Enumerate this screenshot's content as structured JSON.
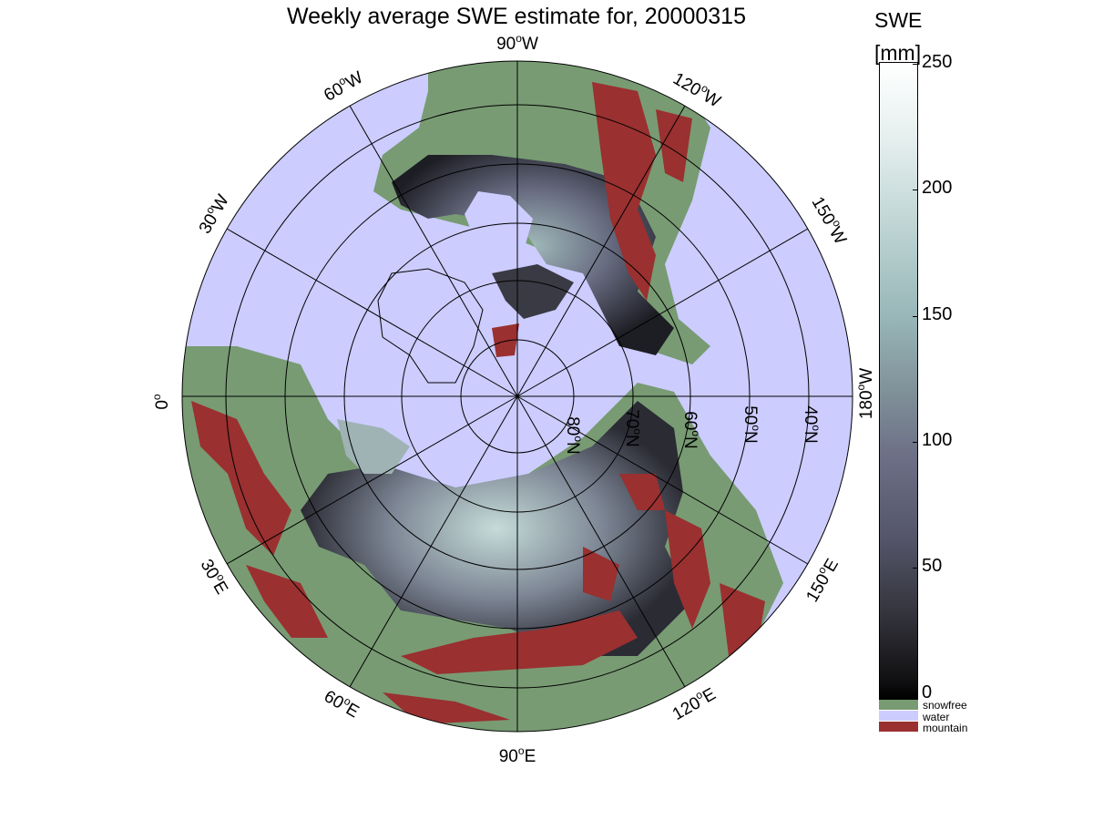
{
  "title": "Weekly average SWE estimate for, 20000315",
  "colorbar": {
    "title_line1": "SWE",
    "title_line2": "[mm]",
    "ticks": [
      "250",
      "200",
      "150",
      "100",
      "50",
      "0"
    ],
    "tick_values": [
      250,
      200,
      150,
      100,
      50,
      0
    ],
    "range": [
      0,
      250
    ],
    "colormap": "bone"
  },
  "legend": [
    {
      "label": "snowfree",
      "color": "#789b73"
    },
    {
      "label": "water",
      "color": "#ccccff"
    },
    {
      "label": "mountain",
      "color": "#9a3030"
    }
  ],
  "map": {
    "projection": "north polar stereographic",
    "longitude_labels": {
      "top": [
        "90",
        "W"
      ],
      "lon_60w": [
        "60",
        "W"
      ],
      "lon_120w": [
        "120",
        "W"
      ],
      "lon_30w": [
        "30",
        "W"
      ],
      "lon_150w": [
        "150",
        "W"
      ],
      "lon_0": [
        "0",
        ""
      ],
      "lon_180w": [
        "180",
        "W"
      ],
      "lon_30e": [
        "30",
        "E"
      ],
      "lon_150e": [
        "150",
        "E"
      ],
      "lon_60e": [
        "60",
        "E"
      ],
      "lon_120e": [
        "120",
        "E"
      ],
      "bottom": [
        "90",
        "E"
      ]
    },
    "latitude_labels": [
      {
        "text": [
          "80",
          "N"
        ]
      },
      {
        "text": [
          "70",
          "N"
        ]
      },
      {
        "text": [
          "60",
          "N"
        ]
      },
      {
        "text": [
          "50",
          "N"
        ]
      },
      {
        "text": [
          "40",
          "N"
        ]
      }
    ],
    "colors": {
      "ocean": "#ccccff",
      "snowfree": "#789b73",
      "mountain": "#9a3030",
      "grid": "#000000"
    }
  }
}
